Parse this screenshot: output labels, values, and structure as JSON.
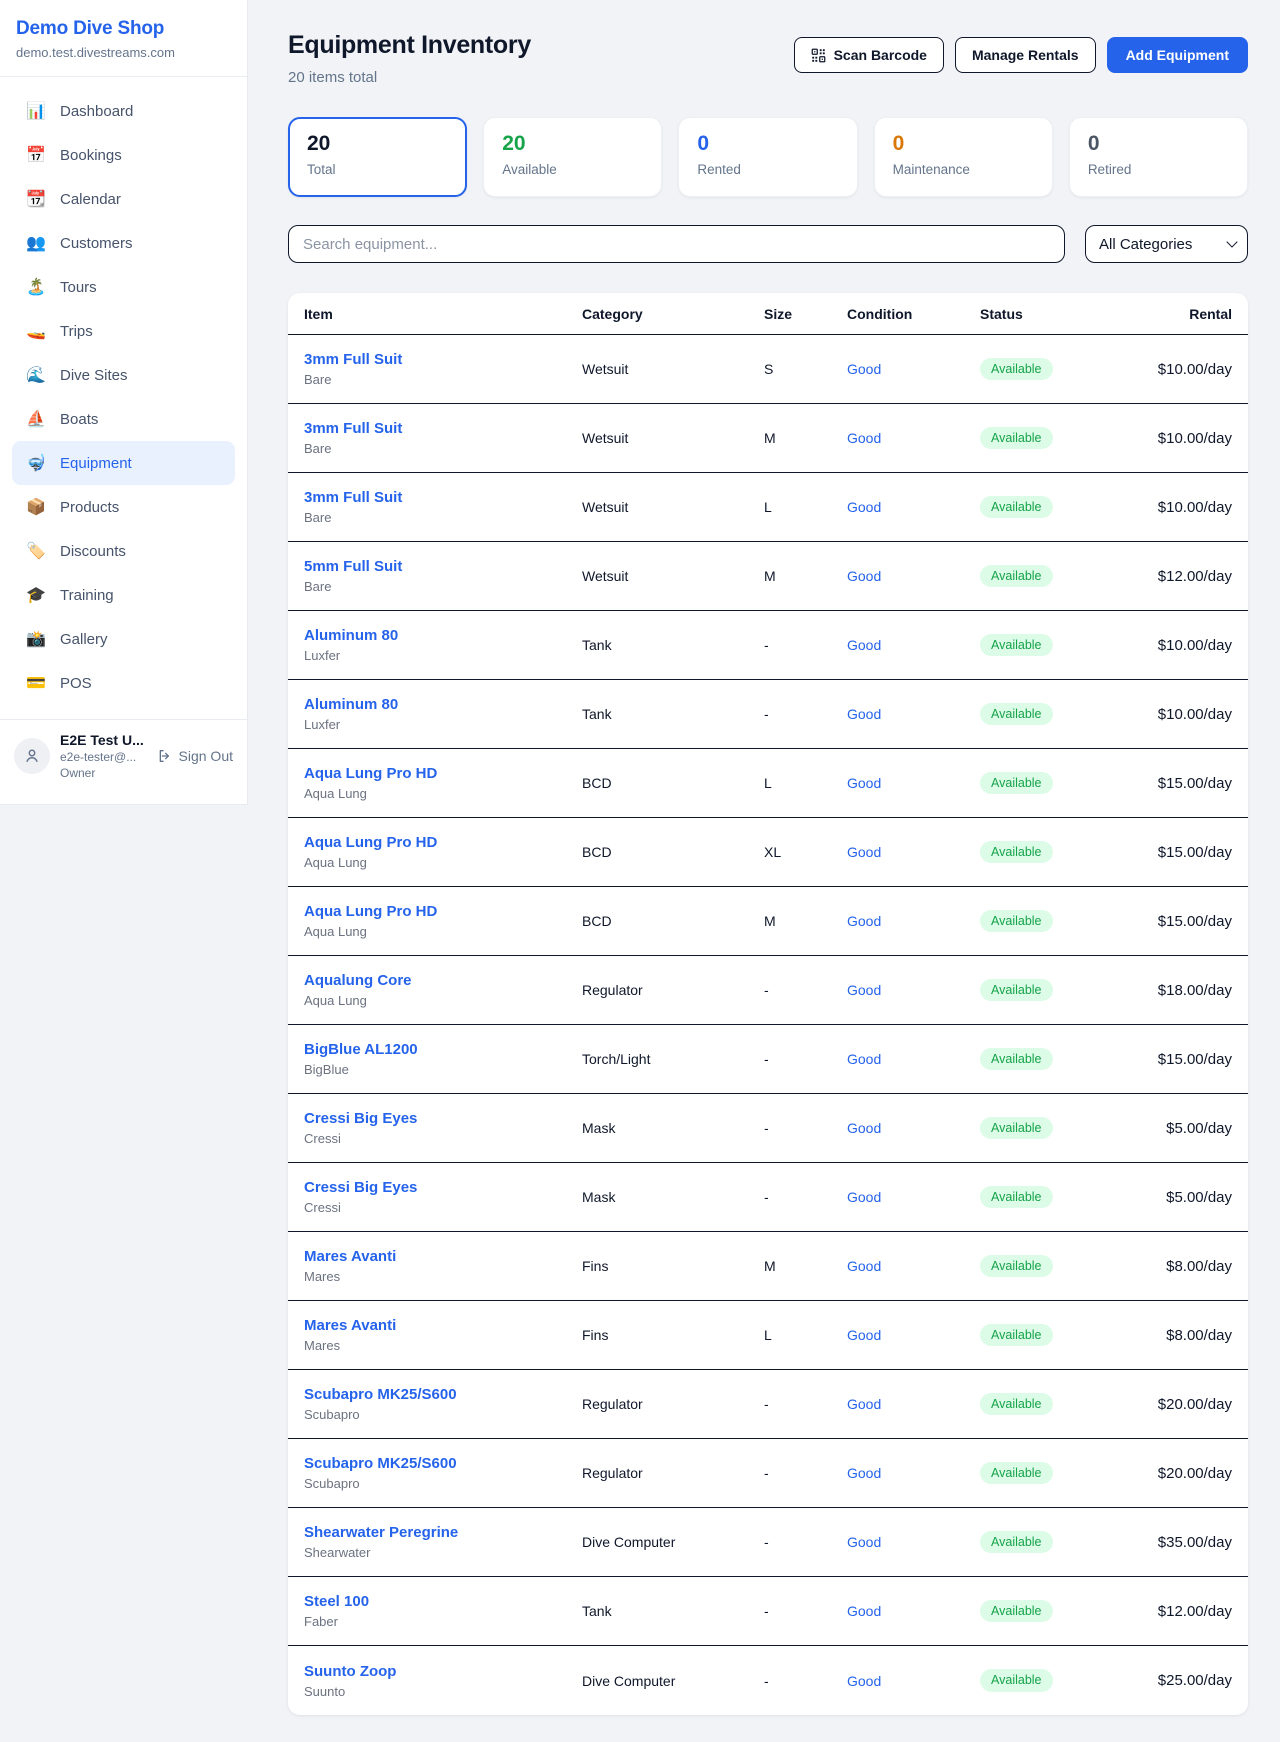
{
  "sidebar": {
    "shop_name": "Demo Dive Shop",
    "shop_domain": "demo.test.divestreams.com",
    "nav": [
      {
        "label": "Dashboard",
        "icon": "bar-chart",
        "glyph": "📊",
        "active": false
      },
      {
        "label": "Bookings",
        "icon": "calendar",
        "glyph": "📅",
        "active": false
      },
      {
        "label": "Calendar",
        "icon": "tear-off-calendar",
        "glyph": "📆",
        "active": false
      },
      {
        "label": "Customers",
        "icon": "people",
        "glyph": "👥",
        "active": false
      },
      {
        "label": "Tours",
        "icon": "desert-island",
        "glyph": "🏝️",
        "active": false
      },
      {
        "label": "Trips",
        "icon": "speedboat",
        "glyph": "🚤",
        "active": false
      },
      {
        "label": "Dive Sites",
        "icon": "wave",
        "glyph": "🌊",
        "active": false
      },
      {
        "label": "Boats",
        "icon": "sailboat",
        "glyph": "⛵",
        "active": false
      },
      {
        "label": "Equipment",
        "icon": "diving-mask",
        "glyph": "🤿",
        "active": true
      },
      {
        "label": "Products",
        "icon": "package",
        "glyph": "📦",
        "active": false
      },
      {
        "label": "Discounts",
        "icon": "label-tag",
        "glyph": "🏷️",
        "active": false
      },
      {
        "label": "Training",
        "icon": "graduation-cap",
        "glyph": "🎓",
        "active": false
      },
      {
        "label": "Gallery",
        "icon": "camera-flash",
        "glyph": "📸",
        "active": false
      },
      {
        "label": "POS",
        "icon": "credit-card",
        "glyph": "💳",
        "active": false
      }
    ],
    "user": {
      "name": "E2E Test U...",
      "email": "e2e-tester@...",
      "role": "Owner",
      "sign_out_label": "Sign Out"
    }
  },
  "header": {
    "title": "Equipment Inventory",
    "subtitle": "20 items total",
    "scan_barcode_label": "Scan Barcode",
    "manage_rentals_label": "Manage Rentals",
    "add_equipment_label": "Add Equipment"
  },
  "stats": [
    {
      "value": "20",
      "label": "Total",
      "color": "#0f172a",
      "selected": true
    },
    {
      "value": "20",
      "label": "Available",
      "color": "#16a34a",
      "selected": false
    },
    {
      "value": "0",
      "label": "Rented",
      "color": "#2563eb",
      "selected": false
    },
    {
      "value": "0",
      "label": "Maintenance",
      "color": "#d97706",
      "selected": false
    },
    {
      "value": "0",
      "label": "Retired",
      "color": "#4b5563",
      "selected": false
    }
  ],
  "filters": {
    "search_placeholder": "Search equipment...",
    "category_selected": "All Categories"
  },
  "table": {
    "columns": [
      "Item",
      "Category",
      "Size",
      "Condition",
      "Status",
      "Rental"
    ],
    "rows": [
      {
        "name": "3mm Full Suit",
        "brand": "Bare",
        "category": "Wetsuit",
        "size": "S",
        "condition": "Good",
        "status": "Available",
        "rental": "$10.00/day"
      },
      {
        "name": "3mm Full Suit",
        "brand": "Bare",
        "category": "Wetsuit",
        "size": "M",
        "condition": "Good",
        "status": "Available",
        "rental": "$10.00/day"
      },
      {
        "name": "3mm Full Suit",
        "brand": "Bare",
        "category": "Wetsuit",
        "size": "L",
        "condition": "Good",
        "status": "Available",
        "rental": "$10.00/day"
      },
      {
        "name": "5mm Full Suit",
        "brand": "Bare",
        "category": "Wetsuit",
        "size": "M",
        "condition": "Good",
        "status": "Available",
        "rental": "$12.00/day"
      },
      {
        "name": "Aluminum 80",
        "brand": "Luxfer",
        "category": "Tank",
        "size": "-",
        "condition": "Good",
        "status": "Available",
        "rental": "$10.00/day"
      },
      {
        "name": "Aluminum 80",
        "brand": "Luxfer",
        "category": "Tank",
        "size": "-",
        "condition": "Good",
        "status": "Available",
        "rental": "$10.00/day"
      },
      {
        "name": "Aqua Lung Pro HD",
        "brand": "Aqua Lung",
        "category": "BCD",
        "size": "L",
        "condition": "Good",
        "status": "Available",
        "rental": "$15.00/day"
      },
      {
        "name": "Aqua Lung Pro HD",
        "brand": "Aqua Lung",
        "category": "BCD",
        "size": "XL",
        "condition": "Good",
        "status": "Available",
        "rental": "$15.00/day"
      },
      {
        "name": "Aqua Lung Pro HD",
        "brand": "Aqua Lung",
        "category": "BCD",
        "size": "M",
        "condition": "Good",
        "status": "Available",
        "rental": "$15.00/day"
      },
      {
        "name": "Aqualung Core",
        "brand": "Aqua Lung",
        "category": "Regulator",
        "size": "-",
        "condition": "Good",
        "status": "Available",
        "rental": "$18.00/day"
      },
      {
        "name": "BigBlue AL1200",
        "brand": "BigBlue",
        "category": "Torch/Light",
        "size": "-",
        "condition": "Good",
        "status": "Available",
        "rental": "$15.00/day"
      },
      {
        "name": "Cressi Big Eyes",
        "brand": "Cressi",
        "category": "Mask",
        "size": "-",
        "condition": "Good",
        "status": "Available",
        "rental": "$5.00/day"
      },
      {
        "name": "Cressi Big Eyes",
        "brand": "Cressi",
        "category": "Mask",
        "size": "-",
        "condition": "Good",
        "status": "Available",
        "rental": "$5.00/day"
      },
      {
        "name": "Mares Avanti",
        "brand": "Mares",
        "category": "Fins",
        "size": "M",
        "condition": "Good",
        "status": "Available",
        "rental": "$8.00/day"
      },
      {
        "name": "Mares Avanti",
        "brand": "Mares",
        "category": "Fins",
        "size": "L",
        "condition": "Good",
        "status": "Available",
        "rental": "$8.00/day"
      },
      {
        "name": "Scubapro MK25/S600",
        "brand": "Scubapro",
        "category": "Regulator",
        "size": "-",
        "condition": "Good",
        "status": "Available",
        "rental": "$20.00/day"
      },
      {
        "name": "Scubapro MK25/S600",
        "brand": "Scubapro",
        "category": "Regulator",
        "size": "-",
        "condition": "Good",
        "status": "Available",
        "rental": "$20.00/day"
      },
      {
        "name": "Shearwater Peregrine",
        "brand": "Shearwater",
        "category": "Dive Computer",
        "size": "-",
        "condition": "Good",
        "status": "Available",
        "rental": "$35.00/day"
      },
      {
        "name": "Steel 100",
        "brand": "Faber",
        "category": "Tank",
        "size": "-",
        "condition": "Good",
        "status": "Available",
        "rental": "$12.00/day"
      },
      {
        "name": "Suunto Zoop",
        "brand": "Suunto",
        "category": "Dive Computer",
        "size": "-",
        "condition": "Good",
        "status": "Available",
        "rental": "$25.00/day"
      }
    ]
  },
  "colors": {
    "brand_blue": "#2563eb",
    "available_green": "#16a34a",
    "badge_bg": "#dcfce7",
    "maintenance_orange": "#d97706",
    "retired_gray": "#4b5563",
    "page_bg": "#f1f3f6",
    "row_border": "#0f172a"
  }
}
